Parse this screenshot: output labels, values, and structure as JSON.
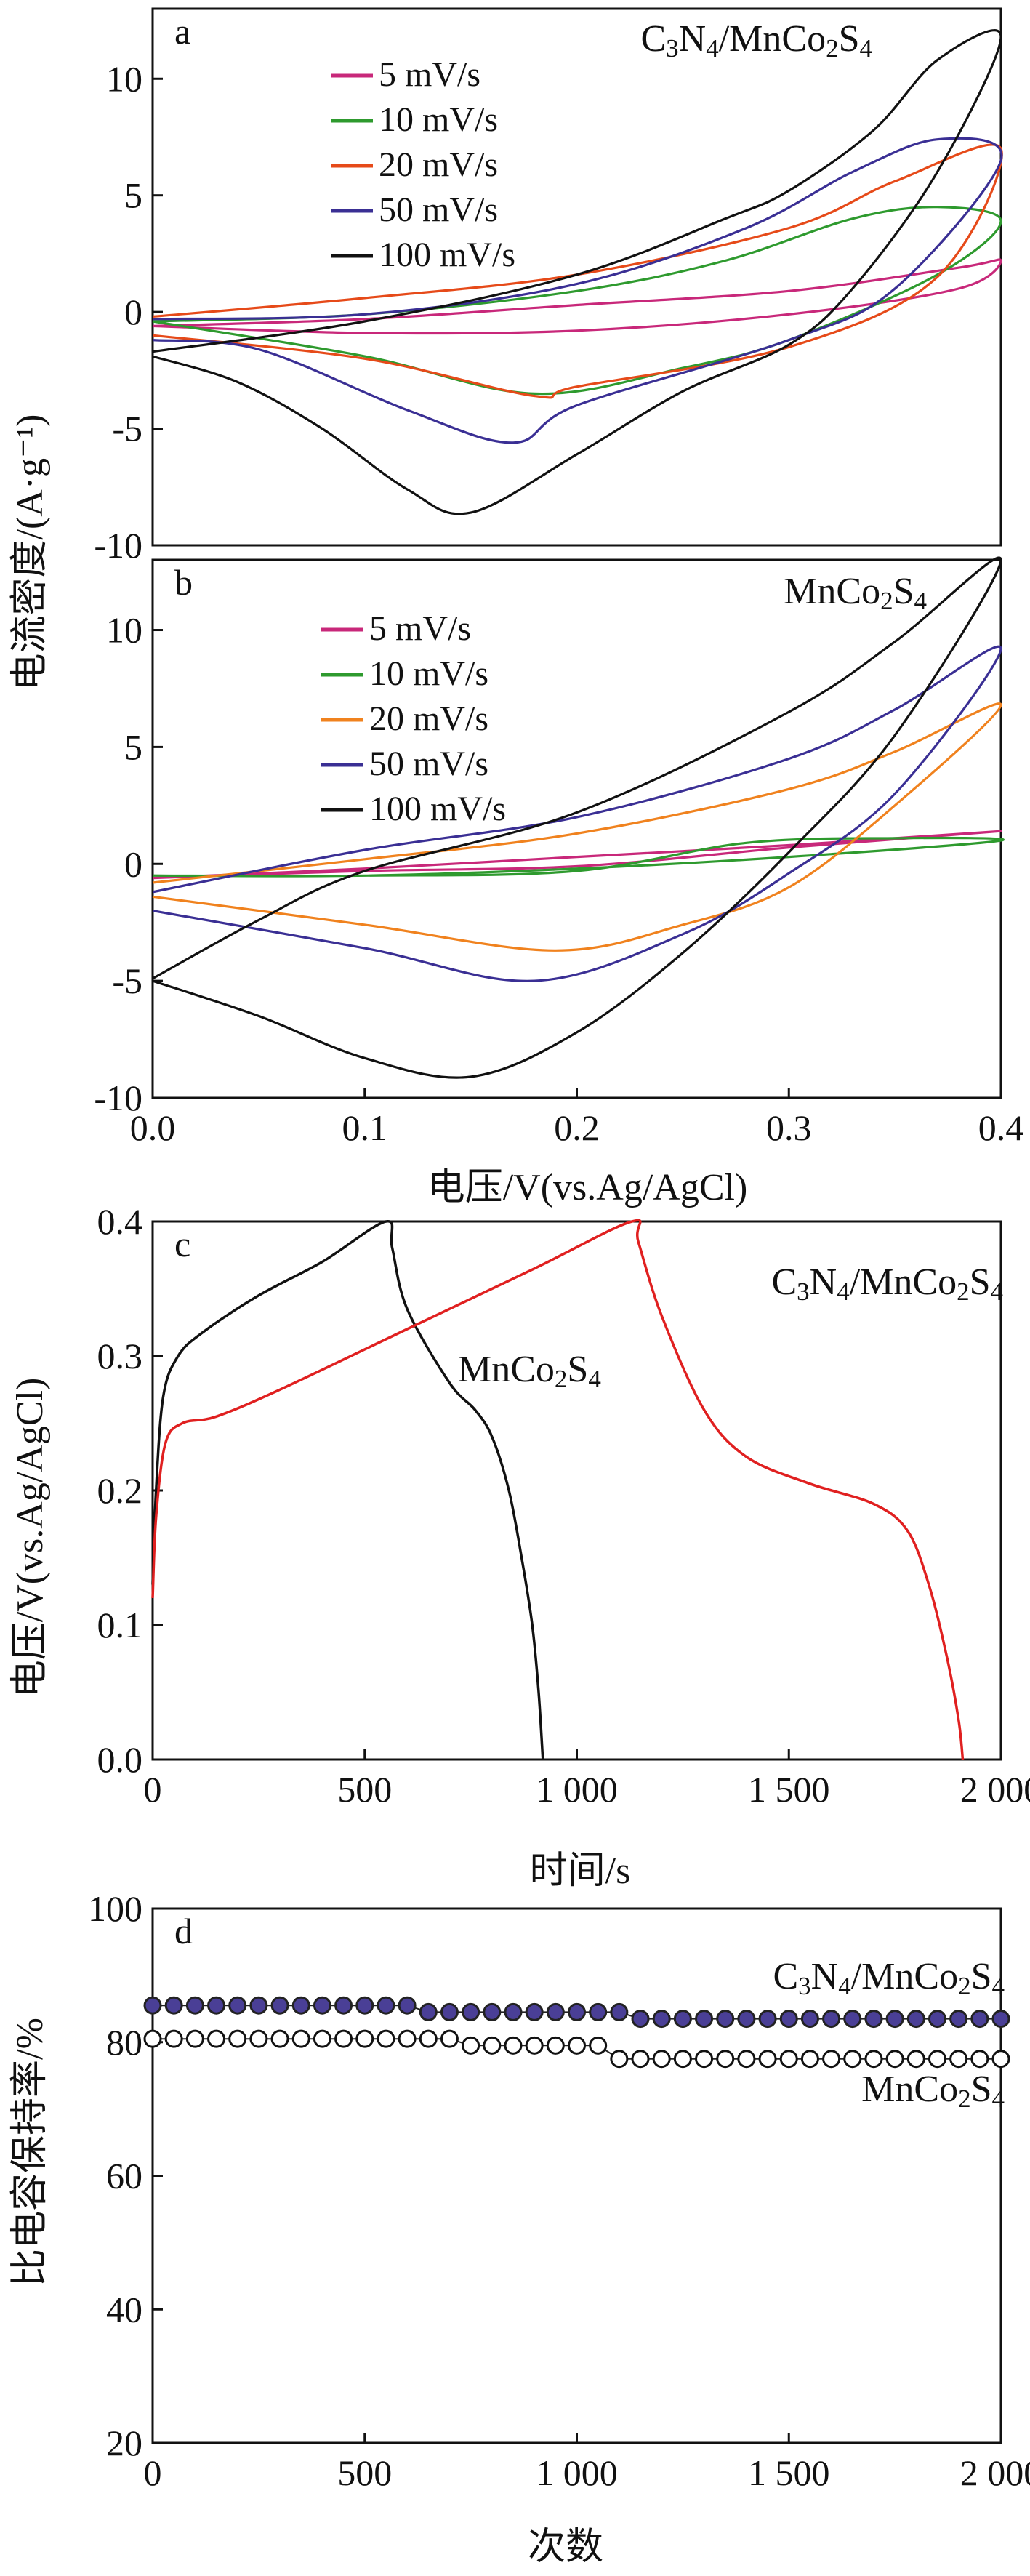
{
  "figure_labels": {
    "cv_ylabel": "电流密度/(A·g⁻¹)",
    "cv_xlabel": "电压/V(vs.Ag/AgCl)",
    "gcd_ylabel": "电压/V(vs.Ag/AgCl)",
    "gcd_xlabel": "时间/s",
    "cyc_ylabel": "比电容保持率/%",
    "cyc_xlabel": "次数"
  },
  "chart_data": [
    {
      "id": "a",
      "panel_label": "a",
      "type": "line",
      "title": "C3N4/MnCo2S4",
      "xlabel": "电压/V(vs.Ag/AgCl)",
      "ylabel": "电流密度/(A·g⁻¹)",
      "xlim": [
        0.0,
        0.4
      ],
      "ylim": [
        -10,
        13
      ],
      "x_ticks": [
        "0.0",
        "0.1",
        "0.2",
        "0.3",
        "0.4"
      ],
      "y_ticks": [
        "-10",
        "-5",
        "0",
        "5",
        "10"
      ],
      "legend_position": "top-left",
      "series": [
        {
          "name": "5 mV/s",
          "color": "#c8287a",
          "anodic": [
            [
              0.0,
              -0.6
            ],
            [
              0.1,
              -0.3
            ],
            [
              0.2,
              0.3
            ],
            [
              0.3,
              0.9
            ],
            [
              0.38,
              1.9
            ],
            [
              0.4,
              2.2
            ]
          ],
          "cathodic": [
            [
              0.4,
              2.2
            ],
            [
              0.38,
              1.0
            ],
            [
              0.3,
              -0.1
            ],
            [
              0.2,
              -0.8
            ],
            [
              0.1,
              -0.9
            ],
            [
              0.0,
              -0.6
            ]
          ]
        },
        {
          "name": "10 mV/s",
          "color": "#2e9a2e",
          "anodic": [
            [
              0.0,
              -0.4
            ],
            [
              0.1,
              -0.1
            ],
            [
              0.2,
              0.9
            ],
            [
              0.27,
              2.2
            ],
            [
              0.33,
              4.0
            ],
            [
              0.37,
              4.5
            ],
            [
              0.4,
              3.9
            ]
          ],
          "cathodic": [
            [
              0.4,
              3.9
            ],
            [
              0.37,
              1.6
            ],
            [
              0.3,
              -1.2
            ],
            [
              0.25,
              -2.4
            ],
            [
              0.18,
              -3.5
            ],
            [
              0.1,
              -1.9
            ],
            [
              0.0,
              -0.4
            ]
          ]
        },
        {
          "name": "20 mV/s",
          "color": "#e64a19",
          "anodic": [
            [
              0.0,
              -0.2
            ],
            [
              0.1,
              0.6
            ],
            [
              0.2,
              1.6
            ],
            [
              0.3,
              3.6
            ],
            [
              0.35,
              5.6
            ],
            [
              0.4,
              7.0
            ]
          ],
          "cathodic": [
            [
              0.4,
              7.0
            ],
            [
              0.37,
              1.5
            ],
            [
              0.3,
              -1.5
            ],
            [
              0.2,
              -3.2
            ],
            [
              0.18,
              -3.6
            ],
            [
              0.1,
              -2.0
            ],
            [
              0.0,
              -1.0
            ]
          ]
        },
        {
          "name": "50 mV/s",
          "color": "#3a2f94",
          "anodic": [
            [
              0.0,
              -0.3
            ],
            [
              0.1,
              -0.1
            ],
            [
              0.2,
              1.2
            ],
            [
              0.28,
              3.6
            ],
            [
              0.33,
              6.0
            ],
            [
              0.37,
              7.4
            ],
            [
              0.4,
              6.5
            ]
          ],
          "cathodic": [
            [
              0.4,
              6.5
            ],
            [
              0.35,
              1.0
            ],
            [
              0.3,
              -1.2
            ],
            [
              0.2,
              -4.0
            ],
            [
              0.17,
              -5.6
            ],
            [
              0.12,
              -4.2
            ],
            [
              0.05,
              -1.6
            ],
            [
              0.0,
              -1.2
            ]
          ]
        },
        {
          "name": "100 mV/s",
          "color": "#111111",
          "anodic": [
            [
              0.0,
              -1.7
            ],
            [
              0.1,
              -0.4
            ],
            [
              0.2,
              1.6
            ],
            [
              0.27,
              4.0
            ],
            [
              0.3,
              5.2
            ],
            [
              0.34,
              7.8
            ],
            [
              0.37,
              10.8
            ],
            [
              0.4,
              11.8
            ]
          ],
          "cathodic": [
            [
              0.4,
              11.8
            ],
            [
              0.37,
              6.0
            ],
            [
              0.33,
              1.0
            ],
            [
              0.3,
              -1.4
            ],
            [
              0.25,
              -3.4
            ],
            [
              0.2,
              -6.1
            ],
            [
              0.15,
              -8.6
            ],
            [
              0.12,
              -7.6
            ],
            [
              0.08,
              -5.0
            ],
            [
              0.04,
              -3.0
            ],
            [
              0.0,
              -1.9
            ]
          ]
        }
      ]
    },
    {
      "id": "b",
      "panel_label": "b",
      "type": "line",
      "title": "MnCo2S4",
      "xlabel": "电压/V(vs.Ag/AgCl)",
      "ylabel": "电流密度/(A·g⁻¹)",
      "xlim": [
        0.0,
        0.4
      ],
      "ylim": [
        -10,
        13
      ],
      "x_ticks": [
        "0.0",
        "0.1",
        "0.2",
        "0.3",
        "0.4"
      ],
      "y_ticks": [
        "-10",
        "-5",
        "0",
        "5",
        "10"
      ],
      "legend_position": "top-left",
      "series": [
        {
          "name": "5 mV/s",
          "color": "#c8287a",
          "anodic": [
            [
              0.0,
              -0.6
            ],
            [
              0.1,
              -0.2
            ],
            [
              0.2,
              0.3
            ],
            [
              0.3,
              0.8
            ],
            [
              0.4,
              1.4
            ]
          ],
          "cathodic": [
            [
              0.4,
              1.4
            ],
            [
              0.3,
              0.7
            ],
            [
              0.2,
              -0.1
            ],
            [
              0.1,
              -0.3
            ],
            [
              0.0,
              -0.6
            ]
          ]
        },
        {
          "name": "10 mV/s",
          "color": "#2e9a2e",
          "anodic": [
            [
              0.0,
              -0.5
            ],
            [
              0.1,
              -0.5
            ],
            [
              0.2,
              -0.3
            ],
            [
              0.28,
              0.9
            ],
            [
              0.35,
              1.1
            ],
            [
              0.4,
              1.0
            ]
          ],
          "cathodic": [
            [
              0.4,
              1.0
            ],
            [
              0.3,
              0.3
            ],
            [
              0.2,
              -0.2
            ],
            [
              0.1,
              -0.5
            ],
            [
              0.0,
              -0.5
            ]
          ]
        },
        {
          "name": "20 mV/s",
          "color": "#f0821e",
          "anodic": [
            [
              0.0,
              -0.8
            ],
            [
              0.1,
              0.2
            ],
            [
              0.2,
              1.3
            ],
            [
              0.3,
              3.2
            ],
            [
              0.35,
              4.8
            ],
            [
              0.4,
              6.8
            ]
          ],
          "cathodic": [
            [
              0.4,
              6.8
            ],
            [
              0.35,
              2.5
            ],
            [
              0.3,
              -1.0
            ],
            [
              0.25,
              -2.6
            ],
            [
              0.19,
              -3.7
            ],
            [
              0.1,
              -2.6
            ],
            [
              0.0,
              -1.4
            ]
          ]
        },
        {
          "name": "50 mV/s",
          "color": "#3a2f94",
          "anodic": [
            [
              0.0,
              -1.2
            ],
            [
              0.1,
              0.6
            ],
            [
              0.2,
              2.0
            ],
            [
              0.3,
              4.5
            ],
            [
              0.35,
              6.6
            ],
            [
              0.4,
              9.2
            ]
          ],
          "cathodic": [
            [
              0.4,
              9.2
            ],
            [
              0.35,
              3.0
            ],
            [
              0.3,
              -0.4
            ],
            [
              0.25,
              -3.0
            ],
            [
              0.18,
              -5.0
            ],
            [
              0.1,
              -3.6
            ],
            [
              0.0,
              -2.0
            ]
          ]
        },
        {
          "name": "100 mV/s",
          "color": "#111111",
          "anodic": [
            [
              0.0,
              -4.9
            ],
            [
              0.05,
              -2.4
            ],
            [
              0.1,
              -0.3
            ],
            [
              0.2,
              2.2
            ],
            [
              0.3,
              6.5
            ],
            [
              0.35,
              9.5
            ],
            [
              0.4,
              13.0
            ]
          ],
          "cathodic": [
            [
              0.4,
              13.0
            ],
            [
              0.35,
              5.5
            ],
            [
              0.3,
              0.5
            ],
            [
              0.25,
              -3.8
            ],
            [
              0.2,
              -7.2
            ],
            [
              0.15,
              -9.1
            ],
            [
              0.1,
              -8.3
            ],
            [
              0.05,
              -6.5
            ],
            [
              0.0,
              -5.0
            ]
          ]
        }
      ]
    },
    {
      "id": "c",
      "panel_label": "c",
      "type": "line",
      "xlabel": "时间/s",
      "ylabel": "电压/V(vs.Ag/AgCl)",
      "xlim": [
        0,
        2000
      ],
      "ylim": [
        0.0,
        0.4
      ],
      "x_ticks": [
        "0",
        "500",
        "1 000",
        "1 500",
        "2 000"
      ],
      "y_ticks": [
        "0.0",
        "0.1",
        "0.2",
        "0.3",
        "0.4"
      ],
      "series": [
        {
          "name": "MnCo2S4",
          "color": "#111111",
          "points": [
            [
              0,
              0.13
            ],
            [
              8,
              0.2
            ],
            [
              25,
              0.27
            ],
            [
              60,
              0.3
            ],
            [
              120,
              0.318
            ],
            [
              250,
              0.345
            ],
            [
              400,
              0.37
            ],
            [
              550,
              0.4
            ],
            [
              565,
              0.38
            ],
            [
              600,
              0.335
            ],
            [
              700,
              0.28
            ],
            [
              760,
              0.26
            ],
            [
              800,
              0.24
            ],
            [
              840,
              0.2
            ],
            [
              870,
              0.15
            ],
            [
              895,
              0.1
            ],
            [
              910,
              0.05
            ],
            [
              920,
              0.0
            ]
          ]
        },
        {
          "name": "C3N4/MnCo2S4",
          "color": "#e02020",
          "points": [
            [
              0,
              0.12
            ],
            [
              8,
              0.18
            ],
            [
              30,
              0.235
            ],
            [
              70,
              0.25
            ],
            [
              150,
              0.255
            ],
            [
              300,
              0.275
            ],
            [
              600,
              0.32
            ],
            [
              900,
              0.365
            ],
            [
              1130,
              0.4
            ],
            [
              1145,
              0.385
            ],
            [
              1200,
              0.33
            ],
            [
              1300,
              0.26
            ],
            [
              1400,
              0.225
            ],
            [
              1550,
              0.205
            ],
            [
              1700,
              0.19
            ],
            [
              1780,
              0.17
            ],
            [
              1830,
              0.13
            ],
            [
              1870,
              0.08
            ],
            [
              1900,
              0.03
            ],
            [
              1910,
              0.0
            ]
          ]
        }
      ]
    },
    {
      "id": "d",
      "panel_label": "d",
      "type": "scatter",
      "xlabel": "次数",
      "ylabel": "比电容保持率/%",
      "xlim": [
        0,
        2000
      ],
      "ylim": [
        20,
        100
      ],
      "x_ticks": [
        "0",
        "500",
        "1 000",
        "1 500",
        "2 000"
      ],
      "y_ticks": [
        "20",
        "40",
        "60",
        "80",
        "100"
      ],
      "series": [
        {
          "name": "C3N4/MnCo2S4",
          "marker": "filled-circle",
          "color": "#4a3f96",
          "x": [
            0,
            50,
            100,
            150,
            200,
            250,
            300,
            350,
            400,
            450,
            500,
            550,
            600,
            650,
            700,
            750,
            800,
            850,
            900,
            950,
            1000,
            1050,
            1100,
            1150,
            1200,
            1250,
            1300,
            1350,
            1400,
            1450,
            1500,
            1550,
            1600,
            1650,
            1700,
            1750,
            1800,
            1850,
            1900,
            1950,
            2000
          ],
          "y": [
            85.5,
            85.5,
            85.5,
            85.5,
            85.5,
            85.5,
            85.5,
            85.5,
            85.5,
            85.5,
            85.5,
            85.5,
            85.5,
            84.5,
            84.5,
            84.5,
            84.5,
            84.5,
            84.5,
            84.5,
            84.5,
            84.5,
            84.5,
            83.5,
            83.5,
            83.5,
            83.5,
            83.5,
            83.5,
            83.5,
            83.5,
            83.5,
            83.5,
            83.5,
            83.5,
            83.5,
            83.5,
            83.5,
            83.5,
            83.5,
            83.5
          ]
        },
        {
          "name": "MnCo2S4",
          "marker": "open-circle",
          "color": "#111111",
          "x": [
            0,
            50,
            100,
            150,
            200,
            250,
            300,
            350,
            400,
            450,
            500,
            550,
            600,
            650,
            700,
            750,
            800,
            850,
            900,
            950,
            1000,
            1050,
            1100,
            1150,
            1200,
            1250,
            1300,
            1350,
            1400,
            1450,
            1500,
            1550,
            1600,
            1650,
            1700,
            1750,
            1800,
            1850,
            1900,
            1950,
            2000
          ],
          "y": [
            80.5,
            80.5,
            80.5,
            80.5,
            80.5,
            80.5,
            80.5,
            80.5,
            80.5,
            80.5,
            80.5,
            80.5,
            80.5,
            80.5,
            80.5,
            79.5,
            79.5,
            79.5,
            79.5,
            79.5,
            79.5,
            79.5,
            77.5,
            77.5,
            77.5,
            77.5,
            77.5,
            77.5,
            77.5,
            77.5,
            77.5,
            77.5,
            77.5,
            77.5,
            77.5,
            77.5,
            77.5,
            77.5,
            77.5,
            77.5,
            77.5
          ]
        }
      ]
    }
  ]
}
